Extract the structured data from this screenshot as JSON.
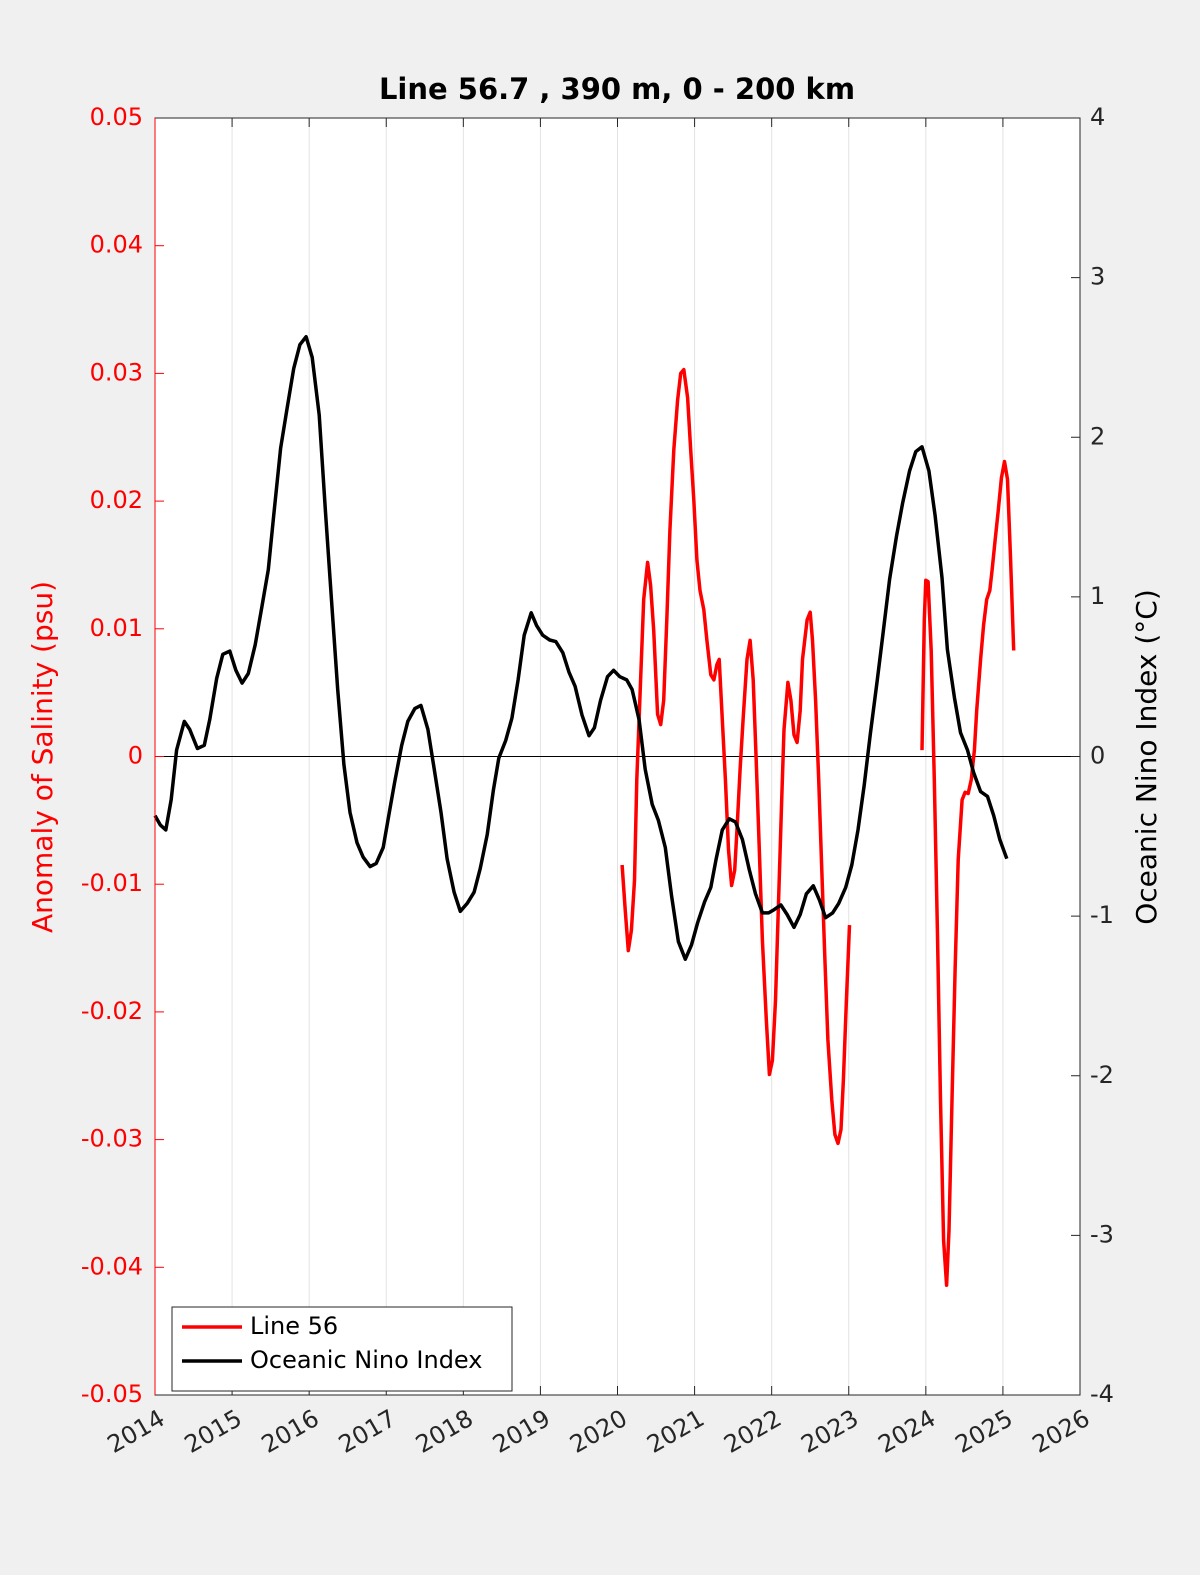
{
  "chart_data": {
    "type": "line",
    "title": "Line 56.7 , 390 m, 0 - 200 km",
    "ylabel": "Anomaly of Salinity (psu)",
    "y2label": "Oceanic Nino Index (°C)",
    "xlim": [
      2014,
      2026
    ],
    "xticks": [
      2014,
      2015,
      2016,
      2017,
      2018,
      2019,
      2020,
      2021,
      2022,
      2023,
      2024,
      2025,
      2026
    ],
    "ylim": [
      -0.05,
      0.05
    ],
    "yticks": [
      -0.05,
      -0.04,
      -0.03,
      -0.02,
      -0.01,
      0,
      0.01,
      0.02,
      0.03,
      0.04,
      0.05
    ],
    "y2lim": [
      -4,
      4
    ],
    "y2ticks": [
      -4,
      -3,
      -2,
      -1,
      0,
      1,
      2,
      3,
      4
    ],
    "grid": "x",
    "zero_line": true,
    "legend": "lower left",
    "ylabel_color": "#ff0000",
    "series": [
      {
        "name": "Line 56",
        "color": "#ff0000",
        "axis": "y",
        "x": [
          2020.06,
          2020.1,
          2020.14,
          2020.18,
          2020.22,
          2020.25,
          2020.3,
          2020.34,
          2020.39,
          2020.43,
          2020.47,
          2020.52,
          2020.56,
          2020.6,
          2020.64,
          2020.68,
          2020.73,
          2020.78,
          2020.82,
          2020.86,
          2020.91,
          2020.95,
          2020.99,
          2021.03,
          2021.07,
          2021.12,
          2021.16,
          2021.21,
          2021.25,
          2021.29,
          2021.32,
          2021.36,
          2021.4,
          2021.44,
          2021.48,
          2021.52,
          2021.55,
          2021.59,
          2021.63,
          2021.68,
          2021.72,
          2021.76,
          2021.8,
          2021.84,
          2021.88,
          2021.93,
          2021.97,
          2022.01,
          2022.05,
          2022.09,
          2022.13,
          2022.16,
          2022.21,
          2022.25,
          2022.29,
          2022.33,
          2022.37,
          2022.4,
          2022.46,
          2022.5,
          2022.53,
          2022.57,
          2022.61,
          2022.65,
          2022.69,
          2022.73,
          2022.78,
          2022.82,
          2022.86,
          2022.9,
          2022.93,
          2022.97,
          2023.01,
          null,
          2023.95,
          2023.98,
          2024.0,
          2024.03,
          2024.07,
          2024.11,
          2024.15,
          2024.19,
          2024.23,
          2024.27,
          2024.3,
          2024.34,
          2024.38,
          2024.42,
          2024.47,
          2024.51,
          2024.55,
          2024.59,
          2024.63,
          2024.66,
          2024.71,
          2024.75,
          2024.79,
          2024.83,
          2024.86,
          2024.9,
          2024.94,
          2024.98,
          2025.02,
          2025.06,
          2025.1,
          2025.14
        ],
        "values": [
          -0.0085,
          -0.012,
          -0.0152,
          -0.0136,
          -0.0097,
          -0.0018,
          0.006,
          0.0123,
          0.0152,
          0.0134,
          0.0099,
          0.0033,
          0.0025,
          0.0044,
          0.0107,
          0.0177,
          0.024,
          0.0279,
          0.03,
          0.0303,
          0.0281,
          0.024,
          0.0201,
          0.0154,
          0.013,
          0.0115,
          0.0091,
          0.0064,
          0.006,
          0.0072,
          0.0076,
          0.0029,
          -0.0018,
          -0.0073,
          -0.0101,
          -0.0089,
          -0.0057,
          -0.001,
          0.0029,
          0.0076,
          0.0091,
          0.006,
          -0.0003,
          -0.0073,
          -0.0144,
          -0.0206,
          -0.0249,
          -0.0238,
          -0.0191,
          -0.0112,
          -0.0034,
          0.0021,
          0.0058,
          0.0044,
          0.0017,
          0.0011,
          0.0036,
          0.0076,
          0.0107,
          0.0113,
          0.0091,
          0.0044,
          -0.0018,
          -0.0089,
          -0.0159,
          -0.0222,
          -0.0269,
          -0.0296,
          -0.0303,
          -0.0292,
          -0.0253,
          -0.0191,
          -0.0132,
          null,
          0.0005,
          0.0107,
          0.0138,
          0.0137,
          0.0083,
          -0.0018,
          -0.0136,
          -0.0269,
          -0.0379,
          -0.0414,
          -0.0371,
          -0.0269,
          -0.0167,
          -0.0081,
          -0.0034,
          -0.0028,
          -0.0029,
          -0.0018,
          0.0005,
          0.0036,
          0.0076,
          0.0103,
          0.0123,
          0.013,
          0.0146,
          0.017,
          0.0193,
          0.0218,
          0.0231,
          0.0217,
          0.0154,
          0.0083
        ]
      },
      {
        "name": "Oceanic Nino Index",
        "color": "#000000",
        "axis": "y2",
        "x": [
          2014.0,
          2014.07,
          2014.14,
          2014.21,
          2014.28,
          2014.38,
          2014.45,
          2014.55,
          2014.64,
          2014.71,
          2014.8,
          2014.88,
          2014.97,
          2015.05,
          2015.13,
          2015.21,
          2015.3,
          2015.38,
          2015.47,
          2015.54,
          2015.63,
          2015.71,
          2015.8,
          2015.88,
          2015.96,
          2016.04,
          2016.13,
          2016.21,
          2016.29,
          2016.37,
          2016.45,
          2016.53,
          2016.62,
          2016.7,
          2016.79,
          2016.87,
          2016.96,
          2017.04,
          2017.11,
          2017.2,
          2017.28,
          2017.37,
          2017.45,
          2017.54,
          2017.62,
          2017.71,
          2017.79,
          2017.88,
          2017.96,
          2018.05,
          2018.14,
          2018.22,
          2018.31,
          2018.39,
          2018.46,
          2018.55,
          2018.63,
          2018.71,
          2018.79,
          2018.88,
          2018.95,
          2019.03,
          2019.12,
          2019.2,
          2019.29,
          2019.37,
          2019.45,
          2019.54,
          2019.63,
          2019.7,
          2019.78,
          2019.87,
          2019.95,
          2020.03,
          2020.12,
          2020.19,
          2020.28,
          2020.36,
          2020.45,
          2020.53,
          2020.62,
          2020.7,
          2020.79,
          2020.88,
          2020.96,
          2021.04,
          2021.13,
          2021.21,
          2021.28,
          2021.36,
          2021.45,
          2021.53,
          2021.62,
          2021.71,
          2021.79,
          2021.88,
          2021.96,
          2022.03,
          2022.12,
          2022.2,
          2022.29,
          2022.37,
          2022.45,
          2022.54,
          2022.62,
          2022.7,
          2022.79,
          2022.87,
          2022.96,
          2023.04,
          2023.12,
          2023.2,
          2023.28,
          2023.37,
          2023.45,
          2023.53,
          2023.62,
          2023.7,
          2023.79,
          2023.87,
          2023.95,
          2024.04,
          2024.12,
          2024.21,
          2024.28,
          2024.37,
          2024.45,
          2024.54,
          2024.62,
          2024.71,
          2024.8,
          2024.88,
          2024.96,
          2025.05
        ],
        "values": [
          -0.37,
          -0.43,
          -0.46,
          -0.27,
          0.04,
          0.22,
          0.17,
          0.05,
          0.07,
          0.23,
          0.49,
          0.64,
          0.66,
          0.54,
          0.46,
          0.52,
          0.7,
          0.92,
          1.17,
          1.51,
          1.93,
          2.17,
          2.43,
          2.58,
          2.63,
          2.5,
          2.14,
          1.54,
          0.98,
          0.42,
          -0.05,
          -0.35,
          -0.54,
          -0.63,
          -0.69,
          -0.67,
          -0.57,
          -0.35,
          -0.16,
          0.07,
          0.22,
          0.3,
          0.32,
          0.17,
          -0.07,
          -0.35,
          -0.64,
          -0.85,
          -0.97,
          -0.92,
          -0.85,
          -0.7,
          -0.49,
          -0.21,
          -0.01,
          0.1,
          0.24,
          0.48,
          0.76,
          0.9,
          0.82,
          0.76,
          0.73,
          0.72,
          0.65,
          0.53,
          0.44,
          0.26,
          0.13,
          0.18,
          0.35,
          0.5,
          0.54,
          0.5,
          0.48,
          0.42,
          0.23,
          -0.08,
          -0.3,
          -0.4,
          -0.57,
          -0.87,
          -1.16,
          -1.27,
          -1.18,
          -1.04,
          -0.91,
          -0.82,
          -0.64,
          -0.46,
          -0.39,
          -0.41,
          -0.52,
          -0.71,
          -0.86,
          -0.98,
          -0.98,
          -0.96,
          -0.93,
          -0.99,
          -1.07,
          -0.99,
          -0.86,
          -0.81,
          -0.9,
          -1.01,
          -0.98,
          -0.92,
          -0.82,
          -0.68,
          -0.46,
          -0.18,
          0.14,
          0.48,
          0.79,
          1.11,
          1.38,
          1.59,
          1.79,
          1.91,
          1.94,
          1.79,
          1.51,
          1.12,
          0.67,
          0.37,
          0.15,
          0.04,
          -0.1,
          -0.22,
          -0.25,
          -0.37,
          -0.52,
          -0.64
        ]
      }
    ]
  }
}
